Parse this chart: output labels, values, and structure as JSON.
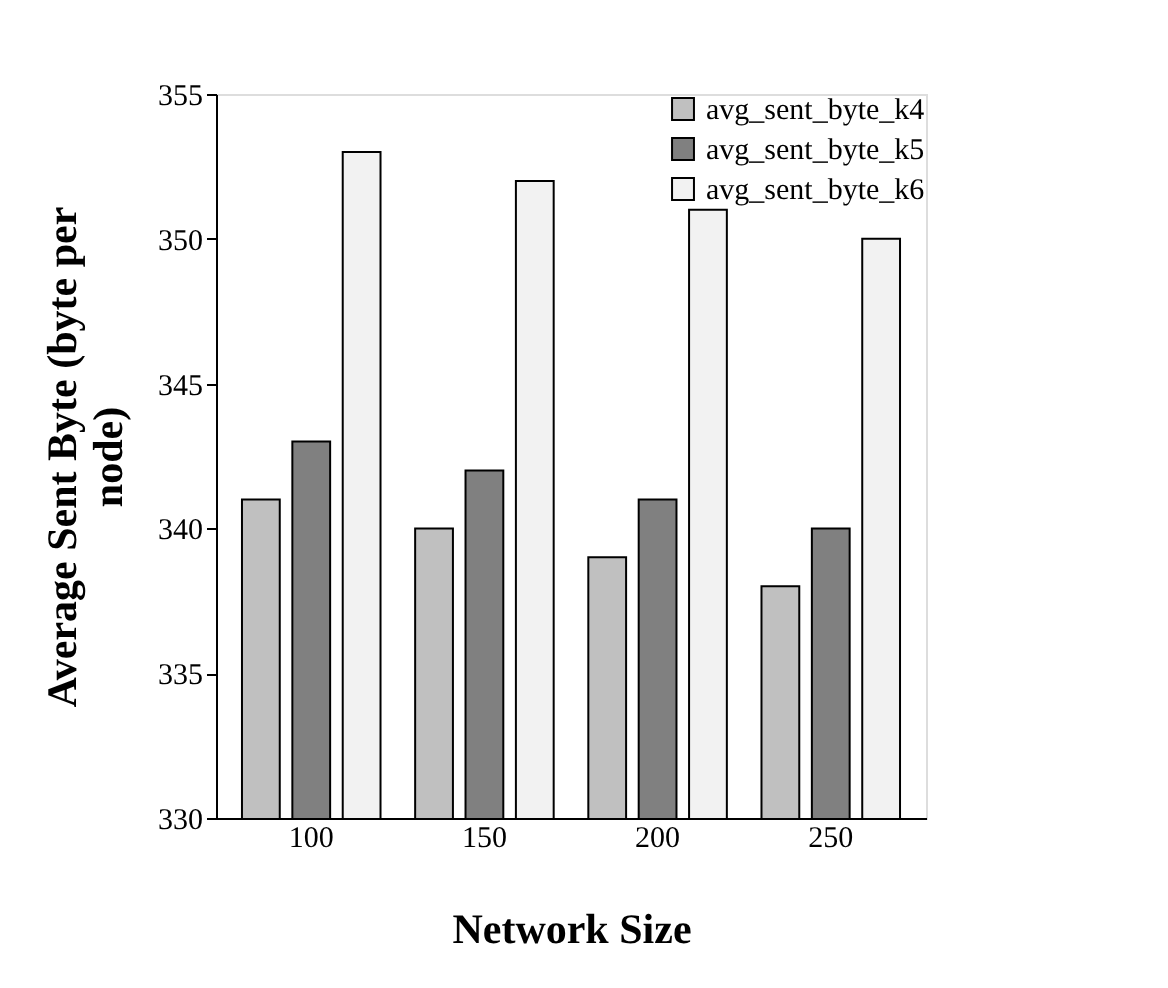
{
  "chart_data": {
    "type": "bar",
    "xlabel": "Network Size",
    "ylabel": "Average Sent Byte (byte per node)",
    "categories": [
      "100",
      "150",
      "200",
      "250"
    ],
    "series": [
      {
        "name": "avg_sent_byte_k4",
        "color": "#c0c0c0",
        "values": [
          341,
          340,
          339,
          338
        ]
      },
      {
        "name": "avg_sent_byte_k5",
        "color": "#808080",
        "values": [
          343,
          342,
          341,
          340
        ]
      },
      {
        "name": "avg_sent_byte_k6",
        "color": "#f2f2f2",
        "values": [
          353,
          352,
          351,
          350
        ]
      }
    ],
    "ylim": [
      330,
      355
    ],
    "yticks": [
      330,
      335,
      340,
      345,
      350,
      355
    ],
    "grid": false,
    "legend": "top right"
  }
}
